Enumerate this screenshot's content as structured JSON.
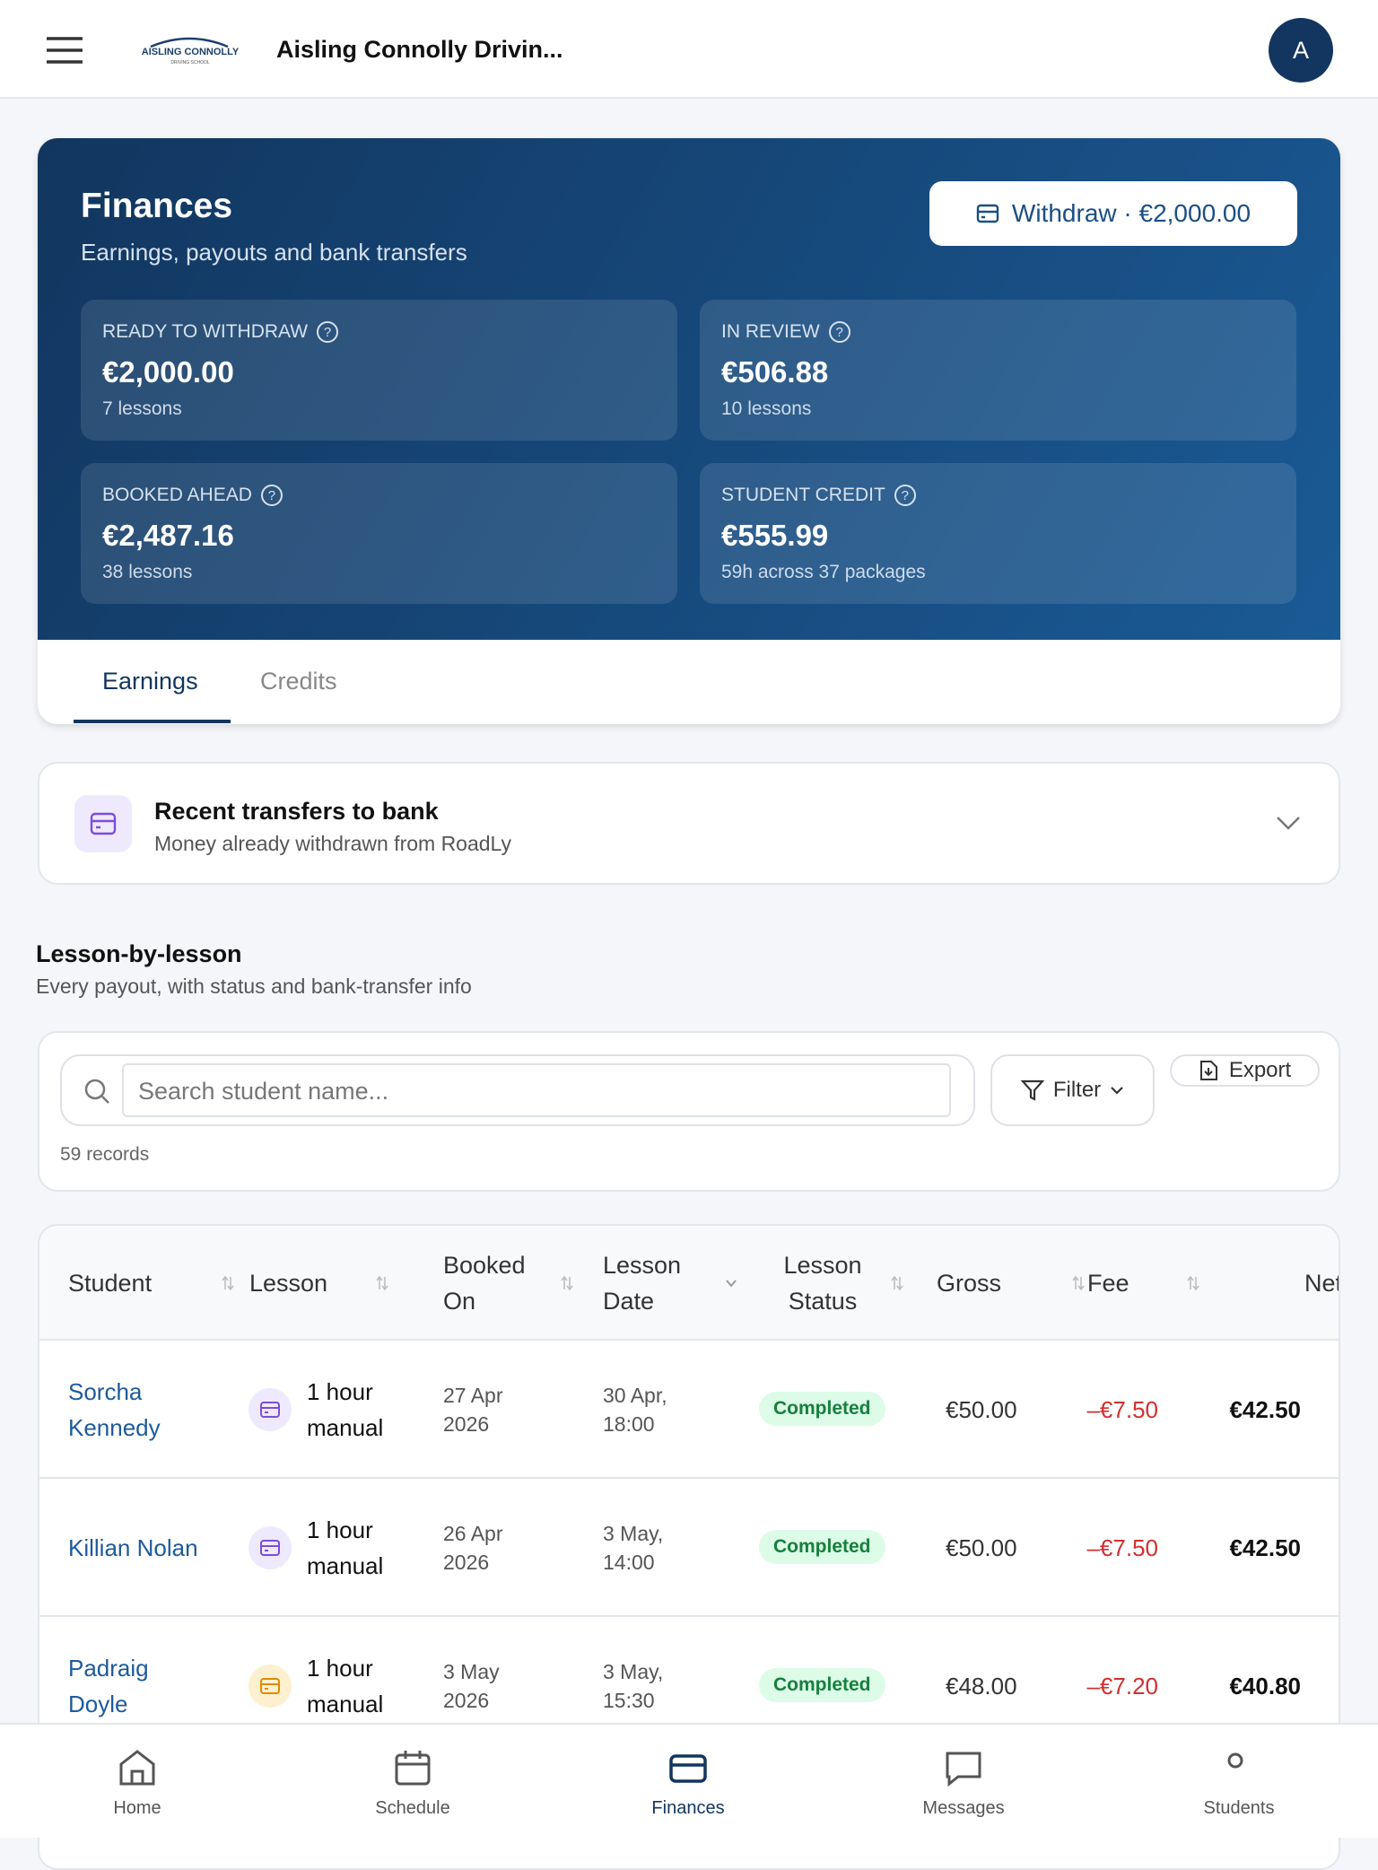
{
  "header": {
    "logo_line1": "AISLING CONNOLLY",
    "logo_line2": "DRIVING SCHOOL",
    "title": "Aisling Connolly Drivin...",
    "avatar": "A"
  },
  "finances": {
    "title": "Finances",
    "subtitle": "Earnings, payouts and bank transfers",
    "withdraw": "Withdraw · €2,000.00",
    "stats": [
      {
        "label": "READY TO WITHDRAW",
        "value": "€2,000.00",
        "detail": "7 lessons"
      },
      {
        "label": "IN REVIEW",
        "value": "€506.88",
        "detail": "10 lessons"
      },
      {
        "label": "BOOKED AHEAD",
        "value": "€2,487.16",
        "detail": "38 lessons"
      },
      {
        "label": "STUDENT CREDIT",
        "value": "€555.99",
        "detail": "59h across 37 packages"
      }
    ],
    "help": "?",
    "tabs": [
      "Earnings",
      "Credits"
    ]
  },
  "transfers": {
    "title": "Recent transfers to bank",
    "subtitle": "Money already withdrawn from RoadLy"
  },
  "section": {
    "title": "Lesson-by-lesson",
    "subtitle": "Every payout, with status and bank-transfer info"
  },
  "search": {
    "placeholder": "Search student name...",
    "filter": "Filter",
    "export": "Export",
    "records": "59 records"
  },
  "table": {
    "columns": [
      "Student",
      "Lesson",
      "Booked On",
      "Lesson Date",
      "Lesson Status",
      "Gross",
      "Fee",
      "Net"
    ],
    "rows": [
      [
        "Sorcha Kennedy",
        "1 hour manual",
        "27 Apr 2026",
        "30 Apr, 18:00",
        "Completed",
        "€50.00",
        "–€7.50",
        "€42.50"
      ],
      [
        "Killian Nolan",
        "1 hour manual",
        "26 Apr 2026",
        "3 May, 14:00",
        "Completed",
        "€50.00",
        "–€7.50",
        "€42.50"
      ],
      [
        "Padraig Doyle",
        "1 hour manual",
        "3 May 2026",
        "3 May, 15:30",
        "Completed",
        "€48.00",
        "–€7.20",
        "€40.80"
      ]
    ]
  },
  "nav": [
    "Home",
    "Schedule",
    "Finances",
    "Messages",
    "Students"
  ]
}
